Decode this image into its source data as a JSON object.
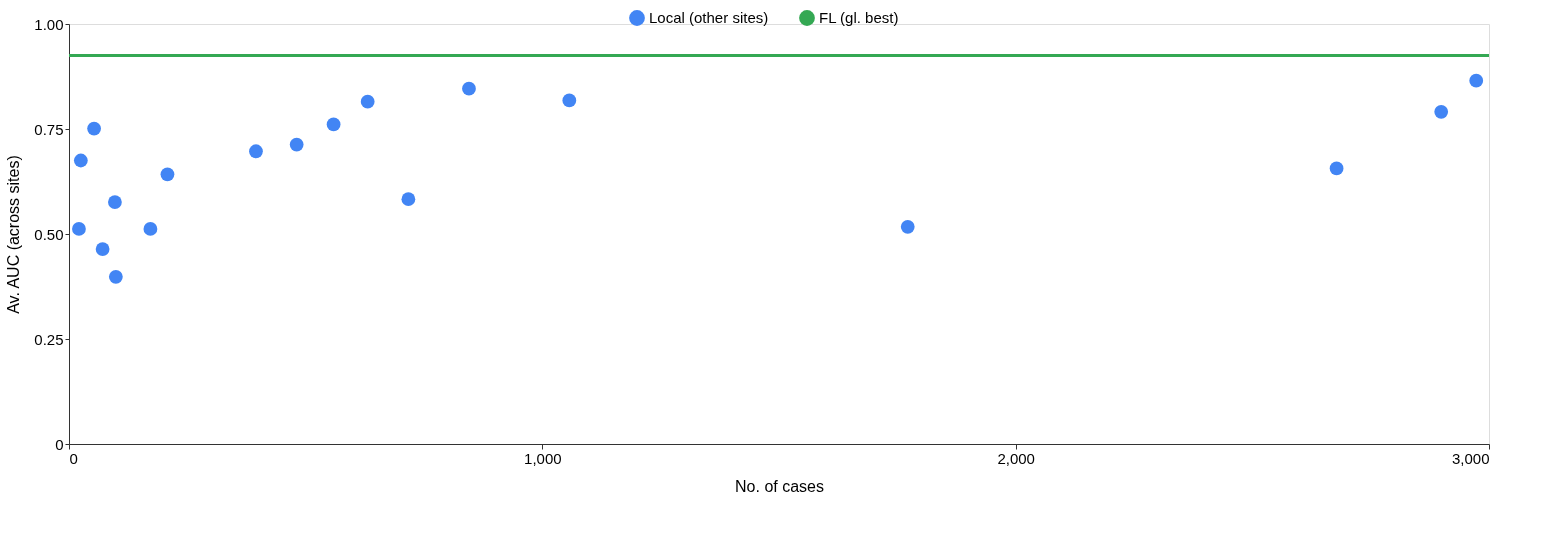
{
  "chart_data": {
    "type": "scatter",
    "xlabel": "No. of cases",
    "ylabel": "Av. AUC (across sites)",
    "xlim": [
      0,
      3000
    ],
    "ylim": [
      0,
      1
    ],
    "xticks": [
      0,
      {
        "value": 1000,
        "label": "1,000"
      },
      {
        "value": 2000,
        "label": "2,000"
      },
      {
        "value": 3000,
        "label": "3,000"
      }
    ],
    "yticks": [
      0,
      {
        "value": 0.25,
        "label": "0.25"
      },
      {
        "value": 0.5,
        "label": "0.50"
      },
      {
        "value": 0.75,
        "label": "0.75"
      },
      {
        "value": 1,
        "label": "1.00"
      }
    ],
    "grid": false,
    "legend": "top",
    "series": [
      {
        "name": "Local (other sites)",
        "marker": "circle",
        "color": "#4285f4",
        "x": [
          21,
          25,
          53,
          71,
          97,
          99,
          172,
          208,
          395,
          481,
          559,
          631,
          717,
          845,
          1057,
          1772,
          2678,
          2899,
          2973
        ],
        "values": [
          0.512,
          0.675,
          0.751,
          0.464,
          0.576,
          0.398,
          0.512,
          0.642,
          0.697,
          0.713,
          0.761,
          0.815,
          0.583,
          0.846,
          0.818,
          0.517,
          0.656,
          0.791,
          0.865
        ]
      },
      {
        "name": "FL (gl. best)",
        "type": "line",
        "marker": "none",
        "color": "#34a853",
        "x": [
          0,
          3000
        ],
        "values": [
          0.925,
          0.925
        ]
      }
    ]
  }
}
